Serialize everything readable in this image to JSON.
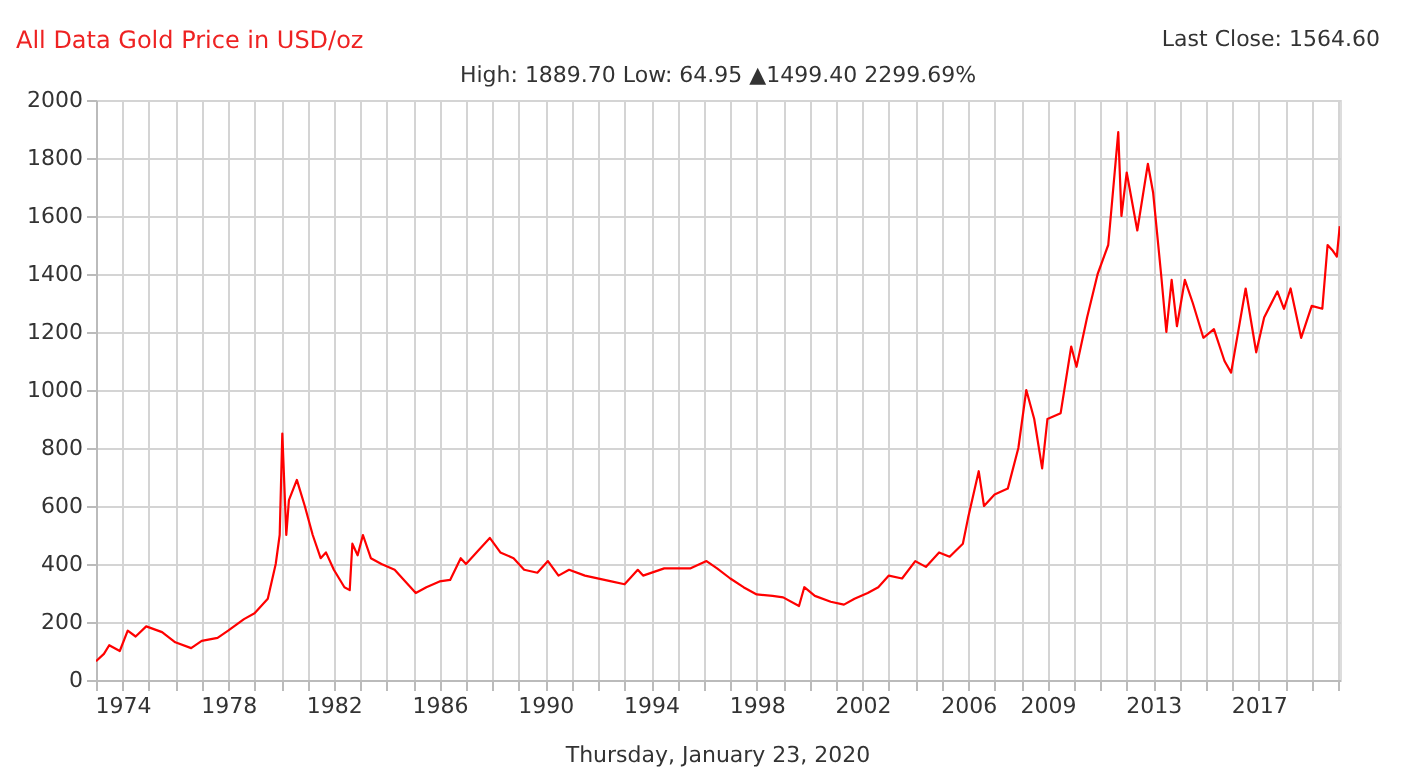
{
  "chart_data": {
    "type": "line",
    "title": "All Data Gold Price in USD/oz",
    "subtitle": "High: 1889.70 Low: 64.95 ▲1499.40 2299.69%",
    "annotations": [
      "Last Close: 1564.60",
      "Thursday, January 23, 2020"
    ],
    "xlim": [
      1973,
      2020.07
    ],
    "xticks": [
      {
        "value": 1973,
        "label": null
      },
      1974,
      {
        "value": 1975,
        "label": null
      },
      {
        "value": 1976,
        "label": null
      },
      {
        "value": 1977,
        "label": null
      },
      1978,
      {
        "value": 1979,
        "label": null
      },
      {
        "value": 1980,
        "label": null
      },
      {
        "value": 1981,
        "label": null
      },
      1982,
      {
        "value": 1983,
        "label": null
      },
      {
        "value": 1984,
        "label": null
      },
      {
        "value": 1985,
        "label": null
      },
      1986,
      {
        "value": 1987,
        "label": null
      },
      {
        "value": 1988,
        "label": null
      },
      {
        "value": 1989,
        "label": null
      },
      1990,
      {
        "value": 1991,
        "label": null
      },
      {
        "value": 1992,
        "label": null
      },
      {
        "value": 1993,
        "label": null
      },
      1994,
      {
        "value": 1995,
        "label": null
      },
      {
        "value": 1996,
        "label": null
      },
      {
        "value": 1997,
        "label": null
      },
      1998,
      {
        "value": 1999,
        "label": null
      },
      {
        "value": 2000,
        "label": null
      },
      {
        "value": 2001,
        "label": null
      },
      2002,
      {
        "value": 2003,
        "label": null
      },
      {
        "value": 2004,
        "label": null
      },
      {
        "value": 2005,
        "label": null
      },
      2006,
      {
        "value": 2007,
        "label": null
      },
      {
        "value": 2008,
        "label": null
      },
      2009,
      {
        "value": 2010,
        "label": null
      },
      {
        "value": 2011,
        "label": null
      },
      {
        "value": 2012,
        "label": null
      },
      2013,
      {
        "value": 2014,
        "label": null
      },
      {
        "value": 2015,
        "label": null
      },
      {
        "value": 2016,
        "label": null
      },
      2017,
      {
        "value": 2018,
        "label": null
      },
      {
        "value": 2019,
        "label": null
      },
      {
        "value": 2020,
        "label": null
      }
    ],
    "ylim": [
      0,
      2000
    ],
    "yticks": [
      0,
      200,
      400,
      600,
      800,
      1000,
      1200,
      1400,
      1600,
      1800,
      2000
    ],
    "grid": true,
    "marker": "none",
    "series": [
      {
        "color": "#ff0000",
        "x": [
          1973.0,
          1973.3,
          1973.5,
          1973.9,
          1974.2,
          1974.5,
          1974.9,
          1975.5,
          1976.0,
          1976.6,
          1977.0,
          1977.6,
          1978.0,
          1978.6,
          1979.0,
          1979.5,
          1979.8,
          1979.95,
          1980.05,
          1980.2,
          1980.3,
          1980.6,
          1980.9,
          1981.2,
          1981.5,
          1981.7,
          1982.0,
          1982.4,
          1982.6,
          1982.7,
          1982.9,
          1983.1,
          1983.4,
          1983.8,
          1984.3,
          1984.6,
          1985.1,
          1985.5,
          1986.0,
          1986.4,
          1986.8,
          1987.0,
          1987.5,
          1987.9,
          1988.3,
          1988.8,
          1989.2,
          1989.7,
          1990.1,
          1990.5,
          1990.9,
          1991.5,
          1992.5,
          1993.0,
          1993.5,
          1993.7,
          1994.5,
          1995.5,
          1996.1,
          1996.5,
          1997.0,
          1997.5,
          1998.0,
          1998.6,
          1999.0,
          1999.6,
          1999.8,
          2000.2,
          2000.8,
          2001.3,
          2001.7,
          2002.2,
          2002.6,
          2003.0,
          2003.5,
          2004.0,
          2004.4,
          2004.9,
          2005.3,
          2005.8,
          2006.0,
          2006.4,
          2006.6,
          2007.0,
          2007.5,
          2007.9,
          2008.2,
          2008.5,
          2008.8,
          2009.0,
          2009.5,
          2009.9,
          2010.1,
          2010.5,
          2010.9,
          2011.3,
          2011.68,
          2011.8,
          2012.0,
          2012.4,
          2012.8,
          2013.0,
          2013.3,
          2013.5,
          2013.7,
          2013.9,
          2014.2,
          2014.5,
          2014.9,
          2015.3,
          2015.7,
          2015.95,
          2016.5,
          2016.9,
          2017.2,
          2017.7,
          2017.95,
          2018.2,
          2018.6,
          2019.0,
          2019.4,
          2019.6,
          2019.8,
          2019.95,
          2020.06
        ],
        "values": [
          65,
          90,
          120,
          100,
          170,
          150,
          185,
          165,
          130,
          110,
          135,
          145,
          170,
          210,
          230,
          280,
          400,
          500,
          850,
          500,
          620,
          690,
          600,
          500,
          420,
          440,
          380,
          320,
          310,
          470,
          430,
          500,
          420,
          400,
          380,
          350,
          300,
          320,
          340,
          345,
          420,
          400,
          450,
          490,
          440,
          420,
          380,
          370,
          410,
          360,
          380,
          360,
          340,
          330,
          380,
          360,
          385,
          385,
          410,
          385,
          350,
          320,
          295,
          290,
          285,
          255,
          320,
          290,
          270,
          260,
          280,
          300,
          320,
          360,
          350,
          410,
          390,
          440,
          425,
          470,
          560,
          720,
          600,
          640,
          660,
          800,
          1000,
          900,
          730,
          900,
          920,
          1150,
          1080,
          1250,
          1400,
          1500,
          1889,
          1600,
          1750,
          1550,
          1780,
          1680,
          1400,
          1200,
          1380,
          1220,
          1380,
          1300,
          1180,
          1210,
          1100,
          1060,
          1350,
          1130,
          1250,
          1340,
          1280,
          1350,
          1180,
          1290,
          1280,
          1500,
          1480,
          1460,
          1565
        ]
      }
    ]
  }
}
